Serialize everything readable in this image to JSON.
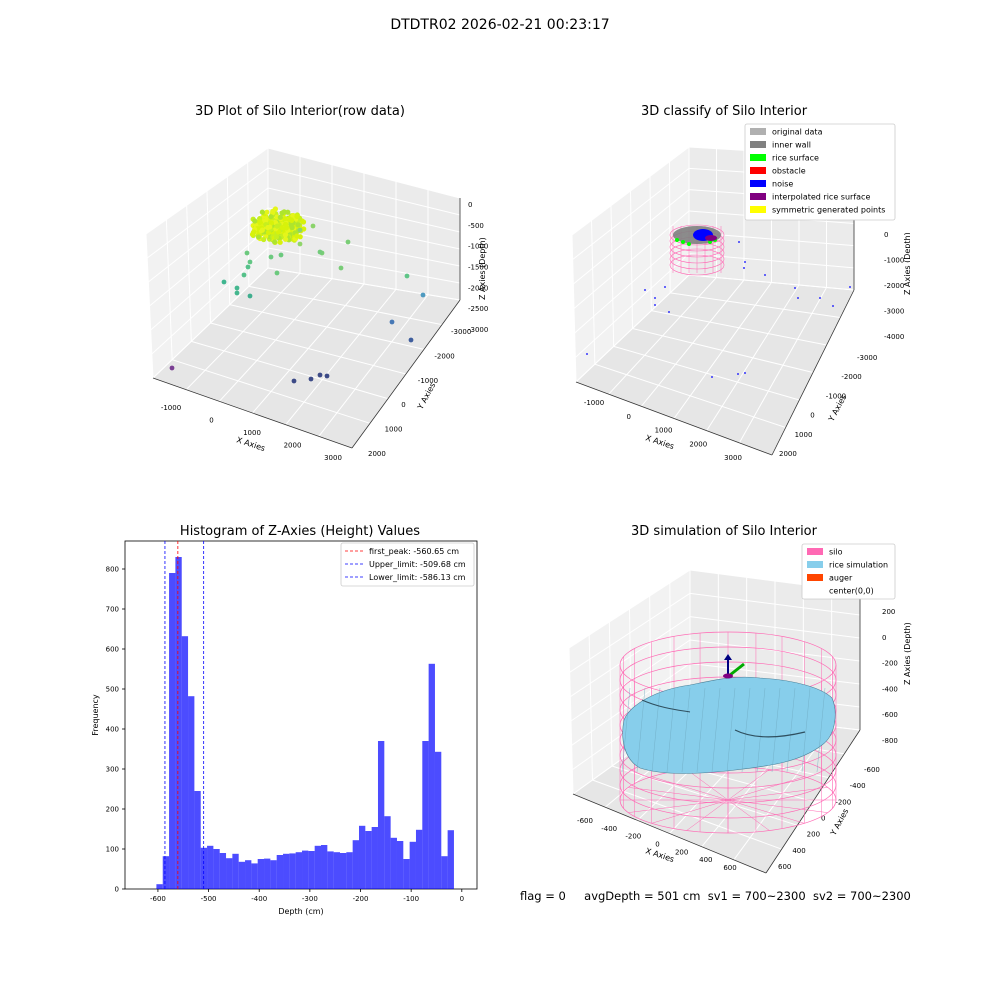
{
  "suptitle": "DTDTR02 2026-02-21 00:23:17",
  "panels": {
    "raw": {
      "title": "3D Plot of Silo Interior(row data)",
      "xlabel": "X Axies",
      "ylabel": "Y Axies",
      "zlabel": "Z Axies (Depth)",
      "xticks": [
        "-1000",
        "0",
        "1000",
        "2000",
        "3000"
      ],
      "yticks": [
        "-3000",
        "-2000",
        "-1000",
        "0",
        "1000",
        "2000"
      ],
      "zticks": [
        "0",
        "-500",
        "-1000",
        "-1500",
        "-2000",
        "-2500",
        "-3000"
      ]
    },
    "classify": {
      "title": "3D classify of Silo Interior",
      "xlabel": "X Axies",
      "ylabel": "Y Axies",
      "zlabel": "Z Axies (Depth)",
      "xticks": [
        "-1000",
        "0",
        "1000",
        "2000",
        "3000"
      ],
      "yticks": [
        "-3000",
        "-2000",
        "-1000",
        "0",
        "1000",
        "2000"
      ],
      "zticks": [
        "0",
        "-1000",
        "-2000",
        "-3000",
        "-4000"
      ],
      "zticks_partial": "000",
      "legend": [
        {
          "label": "original data",
          "color": "#b0b0b0"
        },
        {
          "label": "inner wall",
          "color": "#808080"
        },
        {
          "label": "rice surface",
          "color": "#00ff00"
        },
        {
          "label": "obstacle",
          "color": "#ff0000"
        },
        {
          "label": "noise",
          "color": "#0000ff"
        },
        {
          "label": "interpolated rice surface",
          "color": "#800080"
        },
        {
          "label": "symmetric generated points",
          "color": "#ffff00"
        }
      ]
    },
    "simulation": {
      "title": "3D simulation of Silo Interior",
      "xlabel": "X Axies",
      "ylabel": "Y Axies",
      "zlabel": "Z Axies (Depth)",
      "xticks": [
        "-600",
        "-400",
        "-200",
        "0",
        "200",
        "400",
        "600"
      ],
      "yticks": [
        "-600",
        "-400",
        "-200",
        "0",
        "200",
        "400",
        "600"
      ],
      "zticks": [
        "200",
        "0",
        "-200",
        "-400",
        "-600",
        "-800"
      ],
      "legend": [
        {
          "label": "silo",
          "color": "#ff69b4"
        },
        {
          "label": "rice simulation",
          "color": "#87ceeb"
        },
        {
          "label": "auger",
          "color": "#ff4500"
        },
        {
          "label": "center(0,0)",
          "color": ""
        }
      ]
    }
  },
  "chart_data": {
    "type": "bar",
    "title": "Histogram of Z-Axies (Height) Values",
    "xlabel": "Depth (cm)",
    "ylabel": "Frequency",
    "xlim": [
      -665,
      30
    ],
    "ylim": [
      0,
      870
    ],
    "xticks": [
      -600,
      -500,
      -400,
      -300,
      -200,
      -100,
      0
    ],
    "yticks": [
      0,
      100,
      200,
      300,
      400,
      500,
      600,
      700,
      800
    ],
    "bin_width": 12.5,
    "bin_start": -603,
    "values": [
      12,
      82,
      790,
      830,
      632,
      482,
      245,
      103,
      108,
      100,
      90,
      77,
      88,
      68,
      72,
      64,
      75,
      76,
      72,
      85,
      88,
      89,
      92,
      96,
      95,
      108,
      110,
      94,
      92,
      90,
      92,
      122,
      158,
      145,
      155,
      370,
      182,
      128,
      120,
      75,
      118,
      148,
      370,
      563,
      343,
      82,
      147
    ],
    "color": "#0000ff",
    "lines": [
      {
        "label": "first_peak: -560.65 cm",
        "x": -560.65,
        "color": "#ff0000"
      },
      {
        "label": "Upper_limit: -509.68 cm",
        "x": -509.68,
        "color": "#0000ff"
      },
      {
        "label": "Lower_limit: -586.13 cm",
        "x": -586.13,
        "color": "#0000ff"
      }
    ],
    "legend_position": "upper right"
  },
  "footer": {
    "flag": "flag = 0",
    "avg": "avgDepth = 501 cm",
    "sv1": "sv1 = 700~2300",
    "sv2": "sv2 = 700~2300"
  }
}
